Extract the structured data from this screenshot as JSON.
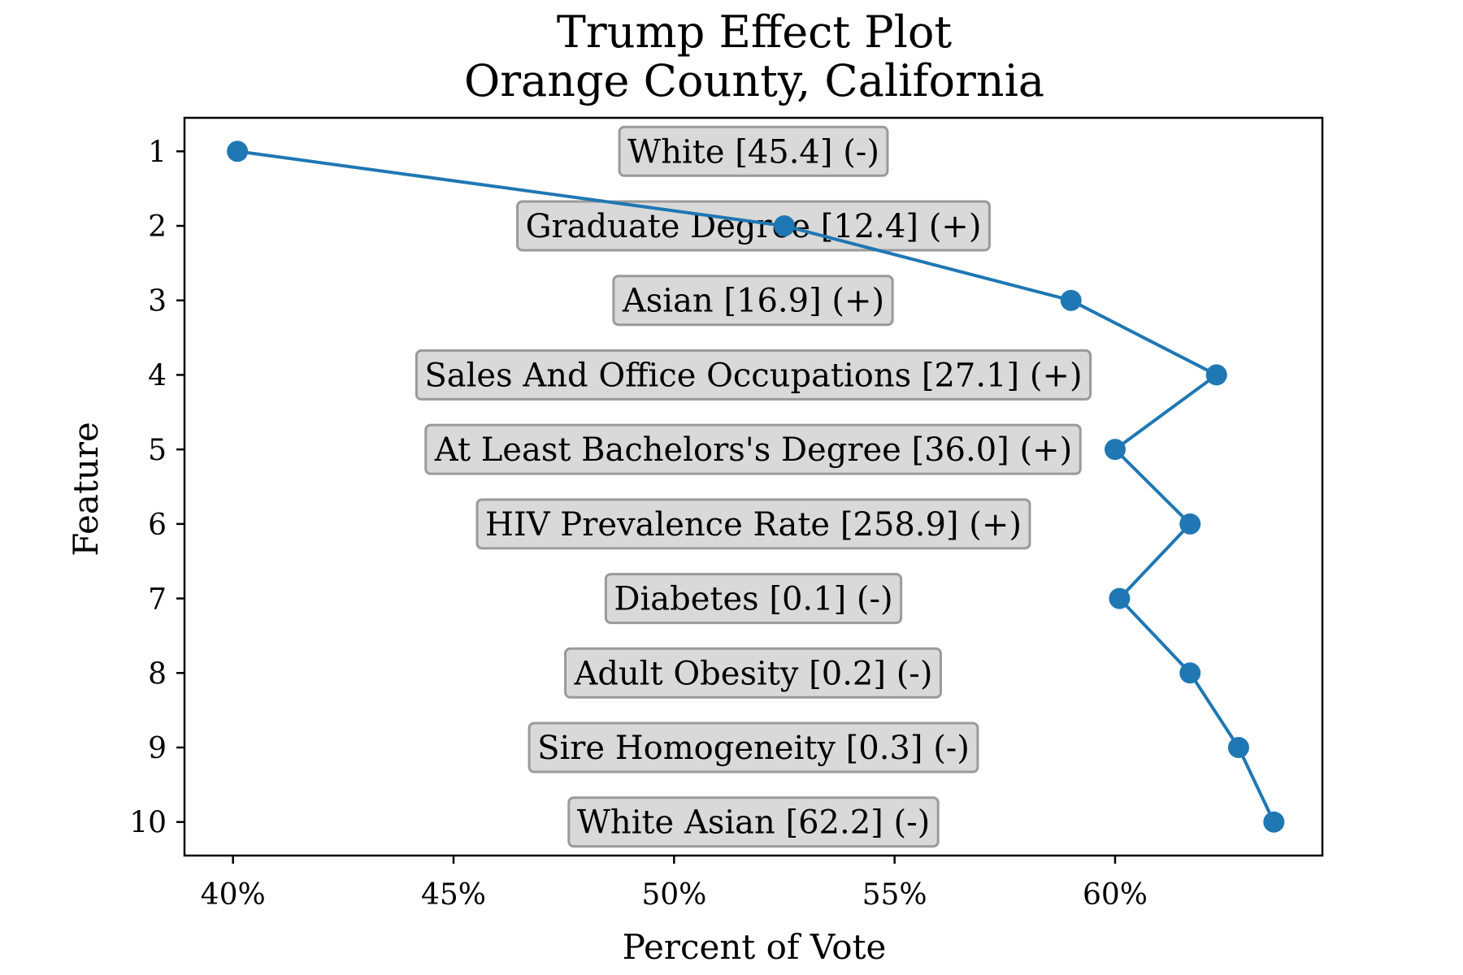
{
  "chart_data": {
    "type": "line",
    "title": "Trump Effect Plot",
    "subtitle": "Orange County, California",
    "xlabel": "Percent of Vote",
    "ylabel": "Feature",
    "xlim": [
      38.9,
      64.7
    ],
    "ylim": [
      10.45,
      0.55
    ],
    "xticks": [
      40,
      45,
      50,
      55,
      60
    ],
    "xtick_labels": [
      "40%",
      "45%",
      "50%",
      "55%",
      "60%"
    ],
    "yticks": [
      1,
      2,
      3,
      4,
      5,
      6,
      7,
      8,
      9,
      10
    ],
    "ytick_labels": [
      "1",
      "2",
      "3",
      "4",
      "5",
      "6",
      "7",
      "8",
      "9",
      "10"
    ],
    "grid": false,
    "series": [
      {
        "color": "#1f77b4",
        "points": [
          {
            "feature": 1,
            "percent": 40.1
          },
          {
            "feature": 2,
            "percent": 52.5
          },
          {
            "feature": 3,
            "percent": 59.0
          },
          {
            "feature": 4,
            "percent": 62.3
          },
          {
            "feature": 5,
            "percent": 60.0
          },
          {
            "feature": 6,
            "percent": 61.7
          },
          {
            "feature": 7,
            "percent": 60.1
          },
          {
            "feature": 8,
            "percent": 61.7
          },
          {
            "feature": 9,
            "percent": 62.8
          },
          {
            "feature": 10,
            "percent": 63.6
          }
        ]
      }
    ],
    "annotations": [
      {
        "feature": 1,
        "text": "White [45.4] (-)"
      },
      {
        "feature": 2,
        "text": "Graduate Degree [12.4] (+)"
      },
      {
        "feature": 3,
        "text": "Asian [16.9] (+)"
      },
      {
        "feature": 4,
        "text": "Sales And Office Occupations [27.1] (+)"
      },
      {
        "feature": 5,
        "text": "At Least Bachelors's Degree [36.0] (+)"
      },
      {
        "feature": 6,
        "text": "HIV Prevalence Rate [258.9] (+)"
      },
      {
        "feature": 7,
        "text": "Diabetes [0.1] (-)"
      },
      {
        "feature": 8,
        "text": "Adult Obesity [0.2] (-)"
      },
      {
        "feature": 9,
        "text": "Sire Homogeneity [0.3] (-)"
      },
      {
        "feature": 10,
        "text": "White Asian [62.2] (-)"
      }
    ]
  }
}
